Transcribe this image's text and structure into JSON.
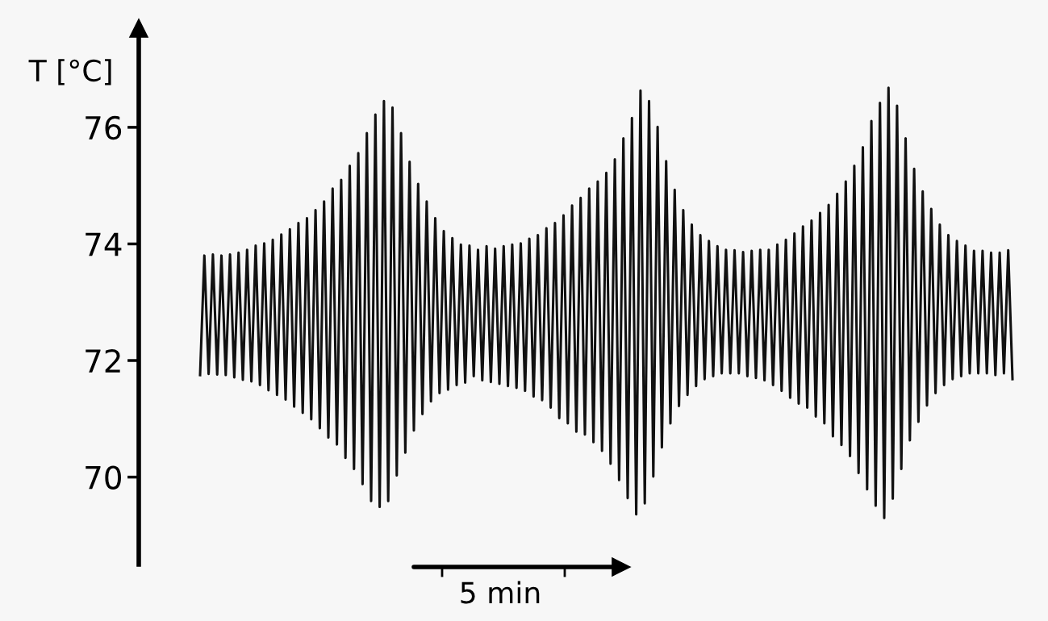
{
  "chart_data": {
    "type": "line",
    "ylabel": "T [°C]",
    "annotations": [
      "5 min"
    ],
    "ylim": [
      68.5,
      77.7
    ],
    "yticks": [
      70,
      72,
      74,
      76
    ],
    "categories": [
      null,
      null,
      null,
      null,
      null,
      null,
      null,
      null,
      null,
      null,
      null,
      null,
      null,
      null,
      null,
      null,
      null,
      null,
      null,
      null,
      null,
      null,
      null,
      null,
      null,
      null,
      null,
      null,
      null,
      null,
      null,
      null,
      null,
      null,
      null,
      null,
      null,
      null,
      null,
      null,
      null,
      null,
      null,
      null,
      null,
      null,
      null,
      null,
      null,
      null,
      null,
      null,
      null,
      null,
      null,
      null,
      null,
      null,
      null,
      null,
      null,
      null,
      null,
      null,
      null,
      null,
      null,
      null,
      null,
      null,
      null,
      null,
      null,
      null,
      null,
      null,
      null,
      null,
      null,
      null,
      null,
      null,
      null,
      null,
      null,
      null,
      null,
      null,
      null,
      null,
      null,
      null,
      null,
      null,
      null,
      null,
      null,
      null,
      null,
      null,
      null,
      null,
      null,
      null,
      null,
      null,
      null,
      null,
      null,
      null,
      null,
      null,
      null,
      null,
      null,
      null,
      null,
      null,
      null,
      null,
      null,
      null,
      null,
      null,
      null,
      null,
      null,
      null,
      null,
      null,
      null,
      null,
      null,
      null,
      null,
      null,
      null,
      null,
      null,
      null,
      null,
      null,
      null,
      null,
      null,
      null,
      null,
      null,
      null,
      null,
      null,
      null,
      null,
      null,
      null,
      null,
      null,
      null,
      null,
      null,
      null,
      null,
      null,
      null,
      null,
      null,
      null,
      null,
      null,
      null,
      null,
      null,
      null,
      null,
      null,
      null,
      null,
      null,
      null,
      null,
      null,
      null,
      null,
      null,
      null,
      null,
      null,
      null,
      null,
      null,
      null
    ],
    "series": [
      {
        "color": "#111111",
        "values": [
          71.75,
          73.8,
          71.77,
          73.82,
          71.76,
          73.8,
          71.75,
          73.82,
          71.71,
          73.85,
          71.67,
          73.9,
          71.64,
          73.97,
          71.58,
          74.01,
          71.49,
          74.07,
          71.41,
          74.16,
          71.33,
          74.25,
          71.21,
          74.36,
          71.1,
          74.44,
          70.99,
          74.58,
          70.84,
          74.73,
          70.68,
          74.95,
          70.56,
          75.1,
          70.33,
          75.34,
          70.14,
          75.56,
          69.88,
          75.9,
          69.59,
          76.22,
          69.49,
          76.45,
          69.59,
          76.34,
          70.03,
          75.9,
          70.42,
          75.41,
          70.8,
          75.03,
          71.08,
          74.73,
          71.3,
          74.44,
          71.44,
          74.22,
          71.5,
          74.1,
          71.58,
          73.99,
          71.62,
          73.97,
          71.73,
          73.9,
          71.66,
          73.96,
          71.63,
          73.92,
          71.6,
          73.96,
          71.56,
          73.99,
          71.53,
          74.01,
          71.48,
          74.09,
          71.38,
          74.15,
          71.32,
          74.27,
          71.19,
          74.36,
          71.01,
          74.49,
          70.92,
          74.66,
          70.78,
          74.79,
          70.73,
          74.95,
          70.6,
          75.07,
          70.45,
          75.22,
          70.23,
          75.45,
          69.95,
          75.81,
          69.64,
          76.16,
          69.36,
          76.63,
          69.55,
          76.45,
          70.01,
          76.01,
          70.51,
          75.42,
          70.92,
          74.93,
          71.22,
          74.58,
          71.41,
          74.33,
          71.56,
          74.15,
          71.68,
          74.05,
          71.73,
          73.96,
          71.78,
          73.9,
          71.78,
          73.89,
          71.78,
          73.86,
          71.73,
          73.88,
          71.7,
          73.9,
          71.66,
          73.9,
          71.58,
          73.99,
          71.48,
          74.07,
          71.36,
          74.18,
          71.26,
          74.3,
          71.19,
          74.4,
          71.04,
          74.53,
          70.92,
          74.67,
          70.7,
          74.86,
          70.55,
          75.07,
          70.36,
          75.34,
          70.07,
          75.66,
          69.79,
          76.11,
          69.51,
          76.42,
          69.3,
          76.68,
          69.63,
          76.37,
          70.14,
          75.81,
          70.63,
          75.29,
          70.95,
          74.9,
          71.23,
          74.6,
          71.44,
          74.33,
          71.58,
          74.15,
          71.68,
          74.05,
          71.73,
          73.97,
          71.78,
          73.88,
          71.78,
          73.88,
          71.78,
          73.85,
          71.75,
          73.85,
          71.78,
          73.89,
          71.68
        ]
      }
    ]
  }
}
